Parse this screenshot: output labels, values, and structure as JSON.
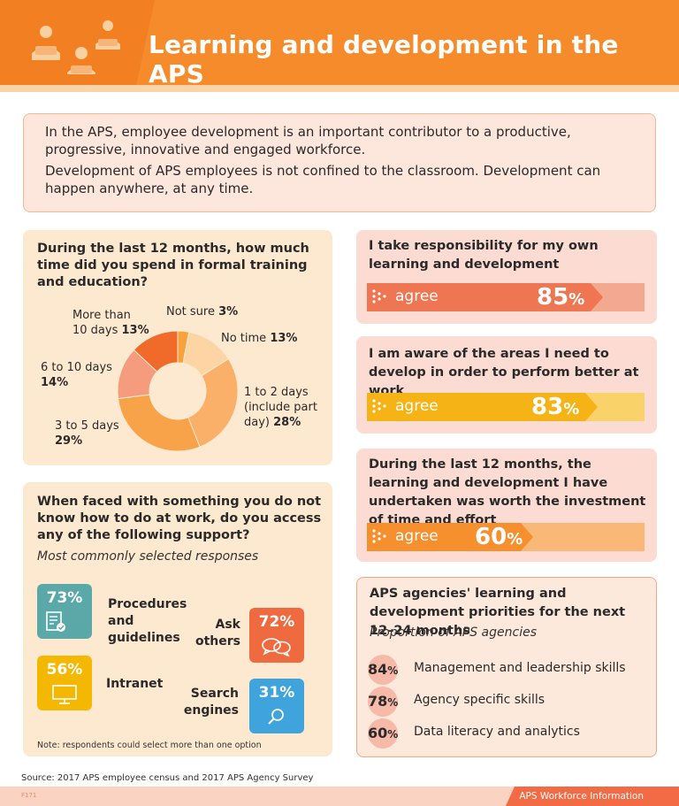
{
  "header": {
    "title": "Learning and development in the APS",
    "icon": "people-reading-icon"
  },
  "intro": {
    "p1": "In the APS, employee development is an important contributor to a productive, progressive, innovative and engaged workforce.",
    "p2": "Development of APS employees is not confined to the classroom. Development can happen anywhere, at any time."
  },
  "training": {
    "question": "During the last 12 months, how much time did you spend in formal training and education?",
    "chart_data": {
      "type": "pie",
      "categories": [
        "Not sure",
        "No time",
        "1 to 2 days (include part day)",
        "3 to 5 days",
        "6 to 10 days",
        "More than 10 days"
      ],
      "values": [
        3,
        13,
        28,
        29,
        14,
        13
      ],
      "colors": [
        "#f7a23c",
        "#fdd5a5",
        "#fbb06a",
        "#f8a24a",
        "#f59b7e",
        "#f06a2a"
      ]
    },
    "labels": {
      "not_sure": "Not sure",
      "not_sure_pct": "3%",
      "no_time": "No time",
      "no_time_pct": "13%",
      "one_two_a": "1 to 2 days",
      "one_two_b": "(include part",
      "one_two_c": "day)",
      "one_two_pct": "28%",
      "three_five": "3 to 5 days",
      "three_five_pct": "29%",
      "six_ten": "6 to 10 days",
      "six_ten_pct": "14%",
      "more_a": "More than",
      "more_b": "10 days",
      "more_pct": "13%"
    }
  },
  "support": {
    "question": "When faced with something you do not know how to do at work, do you access any of the following support?",
    "subtitle": "Most commonly selected responses",
    "items": [
      {
        "pct": "73%",
        "label": "Procedures and guidelines",
        "color": "#5aa9a8",
        "icon": "document-check-icon"
      },
      {
        "pct": "72%",
        "label": "Ask others",
        "color": "#ef6b3f",
        "icon": "speech-bubbles-icon"
      },
      {
        "pct": "56%",
        "label": "Intranet",
        "color": "#f5b800",
        "icon": "monitor-icon"
      },
      {
        "pct": "31%",
        "label": "Search engines",
        "color": "#3fa3dc",
        "icon": "magnifier-icon"
      }
    ],
    "note": "Note: respondents could select more than one option"
  },
  "agree": [
    {
      "statement": "I take responsibility for my own learning and development",
      "label": "agree",
      "pct": "85",
      "value": 0.85,
      "fill": "#ef7652",
      "bg": "#f3a98f"
    },
    {
      "statement": "I am aware of the areas I need to develop in order to perform better at work",
      "label": "agree",
      "pct": "83",
      "value": 0.83,
      "fill": "#f6b316",
      "bg": "#f9d36a"
    },
    {
      "statement": "During the last 12 months, the learning and development I have undertaken was worth the investment of time and effort",
      "label": "agree",
      "pct": "60",
      "value": 0.6,
      "fill": "#f68f2e",
      "bg": "#f9b878"
    }
  ],
  "priorities": {
    "title": "APS agencies' learning and development priorities for the next 12–24 months",
    "subtitle": "Proportion of APS agencies",
    "items": [
      {
        "pct": "84",
        "label": "Management and leadership skills"
      },
      {
        "pct": "78",
        "label": "Agency specific skills"
      },
      {
        "pct": "60",
        "label": "Data literacy and analytics"
      }
    ]
  },
  "source": "Source: 2017 APS employee census and 2017 APS Agency Survey",
  "footer": {
    "page": "F171",
    "brand": "APS Workforce Information"
  }
}
